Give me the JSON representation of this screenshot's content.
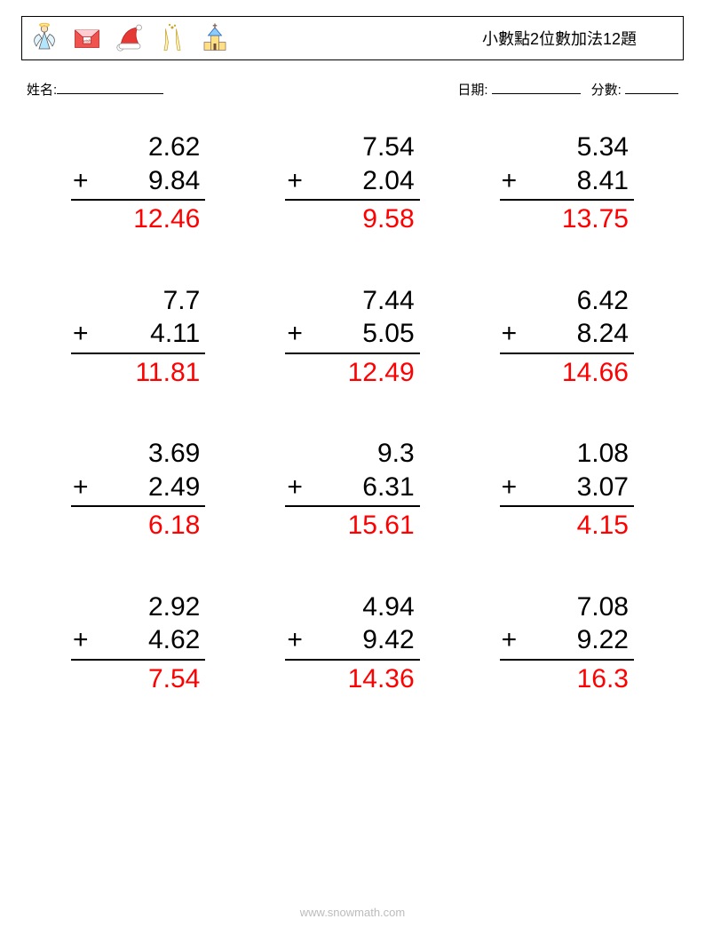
{
  "header": {
    "title": "小數點2位數加法12題",
    "icons": [
      "angel-icon",
      "envelope-icon",
      "santa-hat-icon",
      "champagne-icon",
      "church-icon"
    ]
  },
  "labels": {
    "name": "姓名:",
    "date": "日期:",
    "score": "分數:"
  },
  "operator": "+",
  "problems": [
    {
      "a": "2.62",
      "b": "9.84",
      "ans": "12.46"
    },
    {
      "a": "7.54",
      "b": "2.04",
      "ans": "9.58"
    },
    {
      "a": "5.34",
      "b": "8.41",
      "ans": "13.75"
    },
    {
      "a": "7.7",
      "b": "4.11",
      "ans": "11.81"
    },
    {
      "a": "7.44",
      "b": "5.05",
      "ans": "12.49"
    },
    {
      "a": "6.42",
      "b": "8.24",
      "ans": "14.66"
    },
    {
      "a": "3.69",
      "b": "2.49",
      "ans": "6.18"
    },
    {
      "a": "9.3",
      "b": "6.31",
      "ans": "15.61"
    },
    {
      "a": "1.08",
      "b": "3.07",
      "ans": "4.15"
    },
    {
      "a": "2.92",
      "b": "4.62",
      "ans": "7.54"
    },
    {
      "a": "4.94",
      "b": "9.42",
      "ans": "14.36"
    },
    {
      "a": "7.08",
      "b": "9.22",
      "ans": "16.3"
    }
  ],
  "footer": "www.snowmath.com",
  "colors": {
    "answer": "#ff0000",
    "text": "#000000",
    "background": "#ffffff"
  },
  "icon_svgs": {
    "angel-icon": "<svg viewBox='0 0 48 48' width='36' height='36'><circle cx='24' cy='10' r='5' fill='#ffe0b2' stroke='#555'/><ellipse cx='24' cy='4' rx='7' ry='2' fill='none' stroke='#f5c542' stroke-width='2'/><path d='M24 15 L32 40 L16 40 Z' fill='#b3e5fc' stroke='#555'/><path d='M16 18 Q4 24 12 36 Q16 28 20 24 Z' fill='#e1f5fe' stroke='#555'/><path d='M32 18 Q44 24 36 36 Q32 28 28 24 Z' fill='#e1f5fe' stroke='#555'/></svg>",
    "envelope-icon": "<svg viewBox='0 0 48 48' width='36' height='36'><rect x='6' y='12' width='36' height='26' fill='#ef5350' stroke='#b71c1c'/><path d='M6 12 L24 28 L42 12' fill='#ffcdd2' stroke='#b71c1c'/><rect x='18' y='22' width='12' height='10' fill='#fff' stroke='#b71c1c'/><text x='24' y='30' font-size='6' text-anchor='middle' fill='#b71c1c'>wish</text></svg>",
    "santa-hat-icon": "<svg viewBox='0 0 48 48' width='36' height='36'><path d='M10 38 Q14 10 36 8 Q30 20 38 34 Z' fill='#e53935' stroke='#b71c1c'/><ellipse cx='10' cy='38' rx='5' ry='5' fill='#fff' stroke='#999'/><rect x='8' y='32' width='32' height='8' rx='4' fill='#fff' stroke='#999'/><circle cx='38' cy='8' r='4' fill='#fff' stroke='#999'/></svg>",
    "champagne-icon": "<svg viewBox='0 0 48 48' width='36' height='36'><path d='M14 10 L18 30 L16 42 L12 42 L14 30 Z' fill='#fff3c4' stroke='#c9a227'/><path d='M30 10 L34 30 L36 42 L32 42 L30 30 Z' fill='#fff3c4' stroke='#c9a227'/><circle cx='24' cy='8' r='2' fill='#c9a227'/><circle cx='20' cy='4' r='1.5' fill='#c9a227'/><circle cx='28' cy='5' r='1.5' fill='#c9a227'/></svg>",
    "church-icon": "<svg viewBox='0 0 48 48' width='36' height='36'><rect x='18' y='20' width='12' height='22' fill='#ffe082' stroke='#8d6e63'/><path d='M24 8 L34 20 L14 20 Z' fill='#90caf9' stroke='#1565c0'/><rect x='8' y='30' width='10' height='12' fill='#ffe082' stroke='#8d6e63'/><rect x='30' y='30' width='10' height='12' fill='#ffe082' stroke='#8d6e63'/><line x1='24' y1='2' x2='24' y2='10' stroke='#8d6e63' stroke-width='2'/><line x1='21' y1='5' x2='27' y2='5' stroke='#8d6e63' stroke-width='2'/><rect x='22' y='32' width='4' height='10' fill='#6d4c41'/></svg>"
  }
}
